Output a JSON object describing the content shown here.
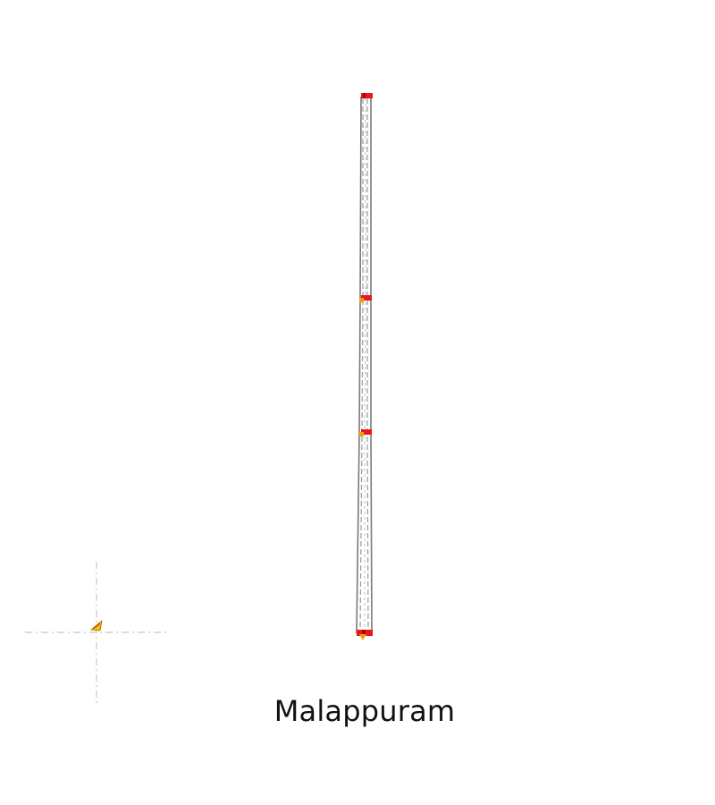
{
  "map": {
    "title": "Malappuram"
  },
  "colors": {
    "route_outline": "#7a7a7a",
    "route_dash": "#9a9a9a",
    "stop_marker": "#e41a1c",
    "stop_marker_dark": "#b30000",
    "end_marker": "#f39c12",
    "crosshair": "#cfcfcf",
    "origin_marker": "#f5c400",
    "origin_accent": "#d35400",
    "background": "#ffffff"
  },
  "icons": {
    "stop_marker": "square-marker-icon",
    "origin_marker": "triangle-marker-icon",
    "locator": "crosshair-icon"
  }
}
